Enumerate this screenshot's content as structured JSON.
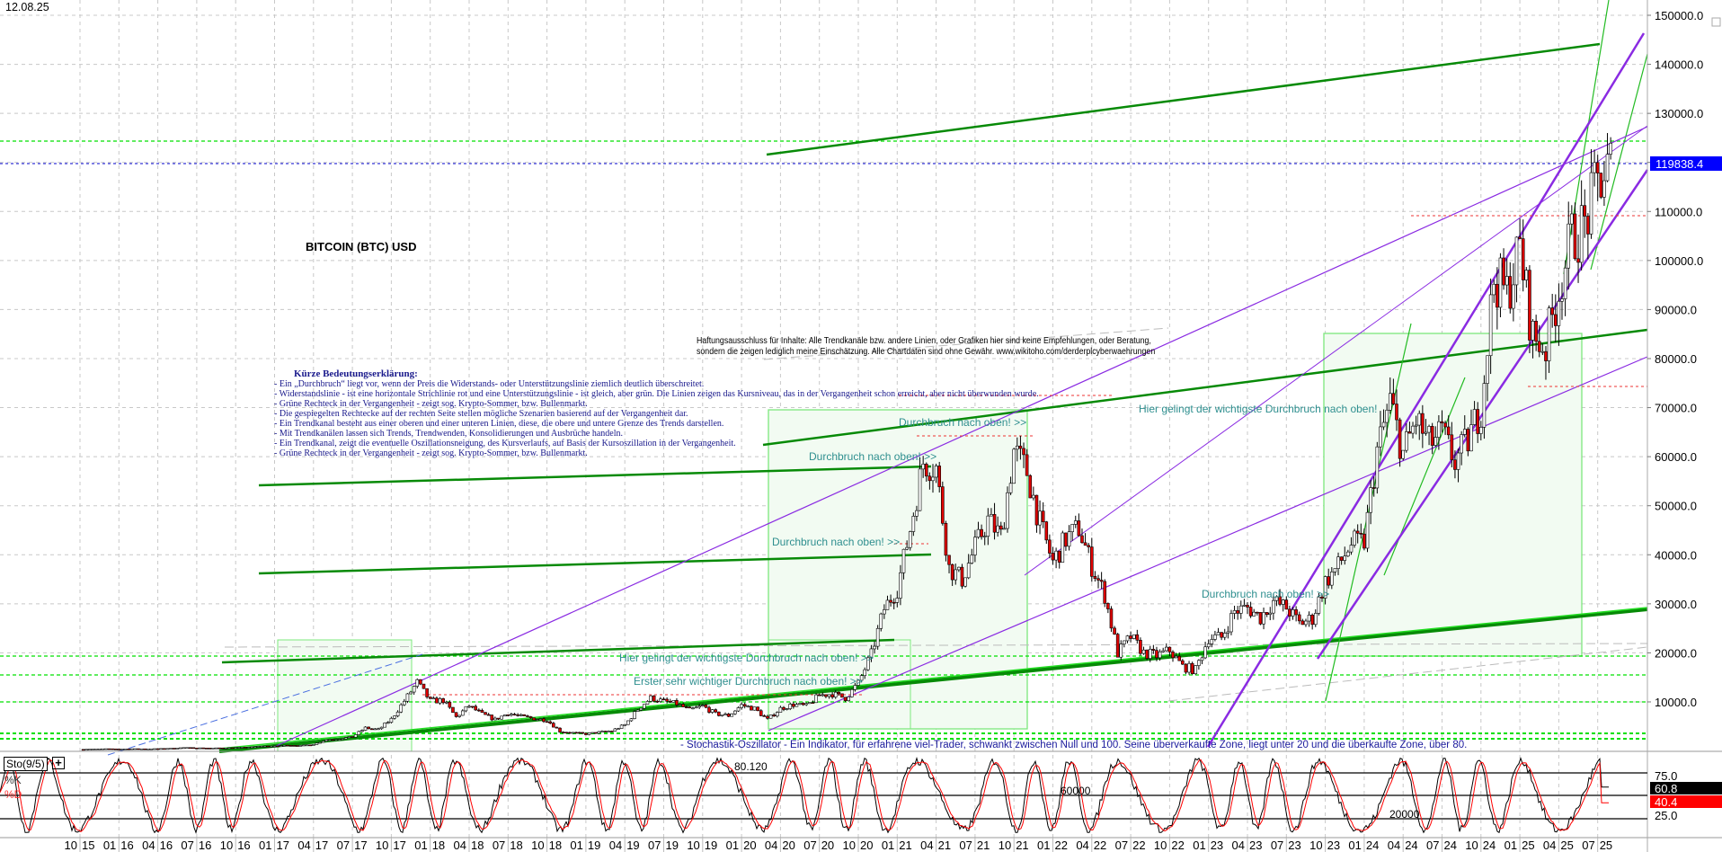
{
  "header": {
    "date": "12.08.25",
    "title": "BITCOIN (BTC) USD"
  },
  "legend": {
    "heading": "Kürze Bedeutungserklärung:",
    "lines": [
      "- Ein „Durchbruch“ liegt vor, wenn der Preis die Widerstands- oder Unterstützungslinie ziemlich deutlich überschreitet.",
      "- Widerstandslinie - ist eine horizontale Strichlinie rot und eine Unterstützungslinie - ist gleich, aber grün. Die Linien zeigen das Kursniveau, das in der Vergangenheit schon erreicht, aber nicht überwunden wurde.",
      "- Grüne Rechteck in der Vergangenheit - zeigt sog. Krypto-Sommer, bzw. Bullenmarkt.",
      "- Die gespiegelten Rechtecke auf der rechten Seite stellen mögliche Szenarien basierend auf der Vergangenheit dar.",
      "- Ein Trendkanal besteht aus einer oberen und einer unteren Linien, diese, die obere und untere Grenze des Trends darstellen.",
      "- Mit Trendkanälen lassen sich Trends, Trendwenden, Konsolidierungen und Ausbrüche handeln.",
      " - Ein Trendkanal, zeigt die eventuelle Oszillationsneigung, des Kursverlaufs, auf Basis der Kursoszillation in der Vergangenheit.",
      " - Grüne Rechteck in der Vergangenheit - zeigt sog. Krypto-Sommer, bzw. Bullenmarkt."
    ]
  },
  "disclaimer": {
    "line1": "Haftungsausschluss für Inhalte: Alle Trendkanäle bzw. andere Linien, oder Grafiken hier sind keine Empfehlungen, oder Beratung,",
    "line2": "sondern die zeigen lediglich meine  Einschätzung. Alle Chartdaten sind ohne Gewähr.  www.wikitoho.com/derderplcyberwaehrungen"
  },
  "annotations": {
    "breakout": "Durchbruch nach oben! >>",
    "most_important": "Hier gelingt der wichtigste Durchbruch nach oben! >>",
    "most_important_2": "Hier gelingt der wichtigste Durchbruch nach oben!",
    "first_important": "Erster sehr wichtiger Durchbruch nach oben! >>",
    "stoch_note": "- Stochastik-Oszillator - Ein Indikator, für erfahrene viel-Trader, schwankt zwischen Null und 100. Seine überverkaufte Zone, liegt unter 20 und die überkaufte Zone, über 80.",
    "val_80120": "80.120",
    "val_60000": "60000",
    "val_20000": "20000"
  },
  "stochastic": {
    "name": "Sto(9/5)",
    "k_label": "%K",
    "d_label": "%D",
    "k_value": "60.8",
    "d_value": "40.4",
    "levels": [
      "75.0",
      "25.0"
    ],
    "k_color": "#000000",
    "d_color": "#ff0000"
  },
  "colors": {
    "price_marker": "#0000ff",
    "support": "#00dd00",
    "trend_dark": "#007a00",
    "channel": "#8a2be2",
    "annotation": "#2f8f8f"
  },
  "chart_data": {
    "type": "candlestick",
    "title": "BITCOIN (BTC) USD",
    "y_ticks": [
      "150000.0",
      "140000.0",
      "130000.0",
      "120000.0",
      "110000.0",
      "100000.0",
      "90000.0",
      "80000.0",
      "70000.0",
      "60000.0",
      "50000.0",
      "40000.0",
      "30000.0",
      "20000.0",
      "10000.0"
    ],
    "ylim": [
      0,
      150000
    ],
    "last_price": "119838.4",
    "x_ticks": [
      "10 15",
      "01 16",
      "04 16",
      "07 16",
      "10 16",
      "01 17",
      "04 17",
      "07 17",
      "10 17",
      "01 18",
      "04 18",
      "07 18",
      "10 18",
      "01 19",
      "04 19",
      "07 19",
      "10 19",
      "01 20",
      "04 20",
      "07 20",
      "10 20",
      "01 21",
      "04 21",
      "07 21",
      "10 21",
      "01 22",
      "04 22",
      "07 22",
      "10 22",
      "01 23",
      "04 23",
      "07 23",
      "10 23",
      "01 24",
      "04 24",
      "07 24",
      "10 24",
      "01 25",
      "04 25",
      "07 25"
    ],
    "series_start": "10.2015",
    "monthly_close": [
      314,
      377,
      430,
      368,
      437,
      416,
      448,
      531,
      673,
      624,
      575,
      609,
      700,
      742,
      963,
      970,
      1190,
      1080,
      1350,
      2300,
      2480,
      2875,
      4700,
      4340,
      6470,
      10200,
      14000,
      10200,
      10300,
      6900,
      9200,
      7500,
      6400,
      7700,
      7000,
      6600,
      6300,
      4000,
      3700,
      3450,
      3800,
      4100,
      5300,
      8500,
      10800,
      10100,
      9600,
      8300,
      9150,
      7550,
      7200,
      9350,
      8600,
      6400,
      8650,
      9450,
      9140,
      11350,
      11650,
      10780,
      13800,
      19700,
      29000,
      33100,
      45200,
      58900,
      57700,
      37300,
      35000,
      41500,
      47100,
      43800,
      61300,
      57000,
      46300,
      38500,
      43200,
      45500,
      37700,
      31800,
      19900,
      23300,
      20000,
      19400,
      20500,
      17200,
      16500,
      23100,
      23100,
      28500,
      29200,
      27200,
      30500,
      29200,
      26000,
      27000,
      34500,
      37700,
      42300,
      42600,
      61200,
      71300,
      60600,
      67500,
      62700,
      64600,
      59000,
      63300,
      70200,
      96400,
      93400,
      102400,
      84400,
      82500,
      94200,
      104600,
      107100,
      115800,
      119838
    ],
    "grid": true
  }
}
